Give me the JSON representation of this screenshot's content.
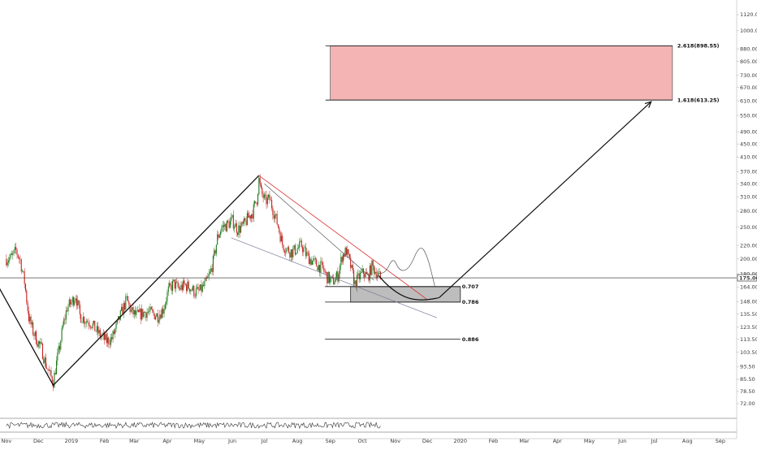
{
  "chart_data": {
    "type": "candlestick",
    "price_axis": {
      "scale": "log",
      "range": [
        68,
        1200
      ],
      "ticks": [
        1120.0,
        1000.0,
        880.0,
        805.0,
        730.0,
        670.0,
        610.0,
        550.0,
        490.0,
        450.0,
        410.0,
        370.0,
        340.0,
        310.0,
        280.0,
        250.0,
        220.0,
        200.0,
        180.0,
        164.0,
        148.0,
        135.5,
        123.5,
        113.5,
        103.5,
        93.5,
        85.5,
        78.5,
        72.0
      ],
      "tick_labels": [
        "1120.00",
        "1000.00",
        "880.00",
        "805.00",
        "730.00",
        "670.00",
        "610.00",
        "550.00",
        "490.00",
        "450.00",
        "410.00",
        "370.00",
        "340.00",
        "310.00",
        "280.00",
        "250.00",
        "220.00",
        "200.00",
        "180.00",
        "164.00",
        "148.00",
        "135.50",
        "123.50",
        "113.50",
        "103.50",
        "93.50",
        "85.50",
        "78.50",
        "72.00"
      ],
      "current_price": 175.0,
      "current_price_label": "175.00"
    },
    "time_axis": {
      "start": "2018-11-01",
      "end": "2020-09-15",
      "ticks": [
        {
          "date": "2018-11-01",
          "label": "Nov"
        },
        {
          "date": "2018-12-01",
          "label": "Dec"
        },
        {
          "date": "2019-01-01",
          "label": "2019"
        },
        {
          "date": "2019-02-01",
          "label": "Feb"
        },
        {
          "date": "2019-03-01",
          "label": "Mar"
        },
        {
          "date": "2019-04-01",
          "label": "Apr"
        },
        {
          "date": "2019-05-01",
          "label": "May"
        },
        {
          "date": "2019-06-01",
          "label": "Jun"
        },
        {
          "date": "2019-07-01",
          "label": "Jul"
        },
        {
          "date": "2019-08-01",
          "label": "Aug"
        },
        {
          "date": "2019-09-01",
          "label": "Sep"
        },
        {
          "date": "2019-10-01",
          "label": "Oct"
        },
        {
          "date": "2019-11-01",
          "label": "Nov"
        },
        {
          "date": "2019-12-01",
          "label": "Dec"
        },
        {
          "date": "2020-01-01",
          "label": "2020"
        },
        {
          "date": "2020-02-01",
          "label": "Feb"
        },
        {
          "date": "2020-03-01",
          "label": "Mar"
        },
        {
          "date": "2020-04-01",
          "label": "Apr"
        },
        {
          "date": "2020-05-01",
          "label": "May"
        },
        {
          "date": "2020-06-01",
          "label": "Jun"
        },
        {
          "date": "2020-07-01",
          "label": "Jul"
        },
        {
          "date": "2020-08-01",
          "label": "Aug"
        },
        {
          "date": "2020-09-01",
          "label": "Sep"
        }
      ]
    },
    "price_path": [
      [
        "2018-11-01",
        200
      ],
      [
        "2018-11-06",
        202
      ],
      [
        "2018-11-10",
        212
      ],
      [
        "2018-11-14",
        198
      ],
      [
        "2018-11-18",
        170
      ],
      [
        "2018-11-22",
        132
      ],
      [
        "2018-11-26",
        120
      ],
      [
        "2018-11-30",
        112
      ],
      [
        "2018-12-04",
        106
      ],
      [
        "2018-12-08",
        95
      ],
      [
        "2018-12-12",
        88
      ],
      [
        "2018-12-15",
        84
      ],
      [
        "2018-12-18",
        96
      ],
      [
        "2018-12-21",
        108
      ],
      [
        "2018-12-24",
        124
      ],
      [
        "2018-12-28",
        142
      ],
      [
        "2019-01-01",
        147
      ],
      [
        "2019-01-05",
        155
      ],
      [
        "2019-01-09",
        134
      ],
      [
        "2019-01-14",
        130
      ],
      [
        "2019-01-19",
        128
      ],
      [
        "2019-01-24",
        121
      ],
      [
        "2019-01-29",
        116
      ],
      [
        "2019-02-03",
        112
      ],
      [
        "2019-02-08",
        114
      ],
      [
        "2019-02-13",
        126
      ],
      [
        "2019-02-18",
        140
      ],
      [
        "2019-02-22",
        150
      ],
      [
        "2019-02-26",
        138
      ],
      [
        "2019-03-03",
        134
      ],
      [
        "2019-03-08",
        136
      ],
      [
        "2019-03-13",
        138
      ],
      [
        "2019-03-18",
        136
      ],
      [
        "2019-03-23",
        134
      ],
      [
        "2019-03-28",
        140
      ],
      [
        "2019-04-02",
        160
      ],
      [
        "2019-04-07",
        168
      ],
      [
        "2019-04-12",
        162
      ],
      [
        "2019-04-17",
        166
      ],
      [
        "2019-04-22",
        164
      ],
      [
        "2019-04-27",
        158
      ],
      [
        "2019-05-02",
        160
      ],
      [
        "2019-05-07",
        168
      ],
      [
        "2019-05-11",
        180
      ],
      [
        "2019-05-14",
        196
      ],
      [
        "2019-05-18",
        232
      ],
      [
        "2019-05-22",
        250
      ],
      [
        "2019-05-27",
        254
      ],
      [
        "2019-06-01",
        262
      ],
      [
        "2019-06-06",
        246
      ],
      [
        "2019-06-11",
        252
      ],
      [
        "2019-06-16",
        268
      ],
      [
        "2019-06-20",
        278
      ],
      [
        "2019-06-24",
        305
      ],
      [
        "2019-06-26",
        350
      ],
      [
        "2019-06-28",
        320
      ],
      [
        "2019-07-02",
        300
      ],
      [
        "2019-07-06",
        305
      ],
      [
        "2019-07-10",
        278
      ],
      [
        "2019-07-14",
        252
      ],
      [
        "2019-07-18",
        222
      ],
      [
        "2019-07-22",
        214
      ],
      [
        "2019-07-27",
        210
      ],
      [
        "2019-08-01",
        215
      ],
      [
        "2019-08-05",
        220
      ],
      [
        "2019-08-09",
        207
      ],
      [
        "2019-08-14",
        198
      ],
      [
        "2019-08-19",
        192
      ],
      [
        "2019-08-24",
        188
      ],
      [
        "2019-08-29",
        176
      ],
      [
        "2019-09-03",
        170
      ],
      [
        "2019-09-08",
        178
      ],
      [
        "2019-09-12",
        204
      ],
      [
        "2019-09-16",
        212
      ],
      [
        "2019-09-20",
        190
      ],
      [
        "2019-09-24",
        168
      ],
      [
        "2019-09-28",
        176
      ],
      [
        "2019-10-02",
        182
      ],
      [
        "2019-10-06",
        176
      ],
      [
        "2019-10-10",
        190
      ],
      [
        "2019-10-14",
        182
      ],
      [
        "2019-10-18",
        175
      ]
    ],
    "oscillator_panel": {
      "visible": true,
      "range": [
        0,
        100
      ]
    },
    "annotations": {
      "fib_levels": [
        {
          "label": "0.707",
          "price": 164.5,
          "from": "2019-08-27",
          "to": "2020-01-01"
        },
        {
          "label": "0.786",
          "price": 147.5,
          "from": "2019-08-27",
          "to": "2020-01-01"
        },
        {
          "label": "0.886",
          "price": 113.5,
          "from": "2019-08-27",
          "to": "2020-01-01"
        }
      ],
      "fib_extensions": [
        {
          "label": "2.618(898.55)",
          "price": 898.55,
          "from": "2019-09-01",
          "to": "2020-07-18"
        },
        {
          "label": "1.618(613.25)",
          "price": 613.25,
          "from": "2019-09-01",
          "to": "2020-07-18"
        }
      ],
      "target_zone": {
        "from": "2019-09-01",
        "to": "2020-07-18",
        "top": 898.55,
        "bottom": 613.25,
        "color": "#f4b4b4"
      },
      "demand_zone": {
        "from": "2019-09-20",
        "to": "2020-01-01",
        "top": 164.5,
        "bottom": 147.5,
        "color": "#bdbdbd"
      },
      "xabcd_swings": [
        [
          "2018-10-20",
          175
        ],
        [
          "2018-12-15",
          82
        ],
        [
          "2019-06-26",
          360
        ]
      ],
      "red_trendline": [
        [
          "2019-06-26",
          360
        ],
        [
          "2019-12-01",
          150
        ]
      ],
      "wedge_upper": [
        [
          "2019-07-01",
          340
        ],
        [
          "2019-10-12",
          172
        ]
      ],
      "wedge_lower": [
        [
          "2019-05-31",
          232
        ],
        [
          "2019-12-10",
          132
        ]
      ],
      "projection_curve": [
        [
          "2019-10-16",
          178
        ],
        [
          "2019-10-26",
          164
        ],
        [
          "2019-11-10",
          152
        ],
        [
          "2019-11-26",
          149
        ],
        [
          "2019-12-12",
          152
        ]
      ],
      "alternate_path": [
        [
          "2019-10-16",
          180
        ],
        [
          "2019-10-23",
          182
        ],
        [
          "2019-10-30",
          203
        ],
        [
          "2019-11-05",
          183
        ],
        [
          "2019-11-14",
          186
        ],
        [
          "2019-11-24",
          222
        ],
        [
          "2019-12-01",
          205
        ],
        [
          "2019-12-08",
          165
        ]
      ],
      "target_arrow": [
        [
          "2019-12-12",
          152
        ],
        [
          "2020-06-28",
          606
        ]
      ],
      "colors": {
        "up": "#1d7a1d",
        "down": "#c62020",
        "trendline_red": "#d93030",
        "wedge": "#555577",
        "pattern": "#111111"
      }
    }
  }
}
